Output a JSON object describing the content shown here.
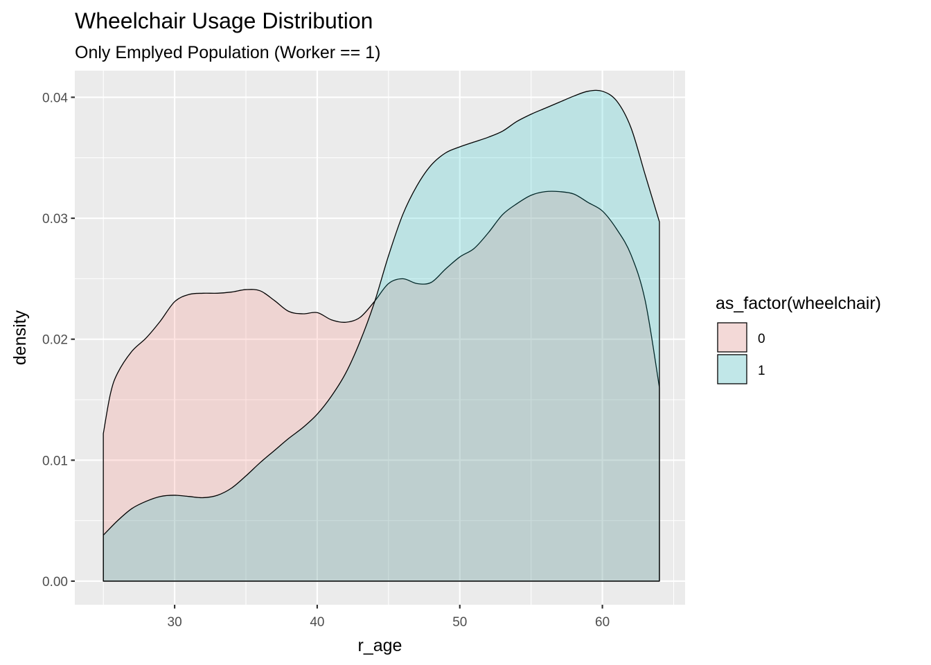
{
  "chart_data": {
    "type": "area",
    "title": "Wheelchair Usage Distribution",
    "subtitle": "Only Emplyed Population (Worker == 1)",
    "xlabel": "r_age",
    "ylabel": "density",
    "xlim": [
      23,
      65.8
    ],
    "ylim": [
      -0.00195,
      0.0422
    ],
    "x_ticks": [
      30,
      40,
      50,
      60
    ],
    "y_ticks": [
      0,
      0.01,
      0.02,
      0.03,
      0.04
    ],
    "x_tick_labels": [
      "30",
      "40",
      "50",
      "60"
    ],
    "y_tick_labels": [
      "0.00",
      "0.01",
      "0.02",
      "0.03",
      "0.04"
    ],
    "grid": true,
    "legend_position": "right",
    "legend_title": "as_factor(wheelchair)",
    "series": [
      {
        "name": "0",
        "fill": "#F8766D",
        "points": [
          [
            25,
            0.0122
          ],
          [
            25.5,
            0.0155
          ],
          [
            26,
            0.0172
          ],
          [
            27,
            0.019
          ],
          [
            28,
            0.0201
          ],
          [
            29,
            0.0215
          ],
          [
            30,
            0.0231
          ],
          [
            31,
            0.0237
          ],
          [
            32,
            0.0238
          ],
          [
            33,
            0.0238
          ],
          [
            34,
            0.0239
          ],
          [
            35,
            0.0241
          ],
          [
            36,
            0.024
          ],
          [
            37,
            0.0232
          ],
          [
            38,
            0.0223
          ],
          [
            39,
            0.0221
          ],
          [
            40,
            0.0222
          ],
          [
            41,
            0.0216
          ],
          [
            42,
            0.0214
          ],
          [
            43,
            0.0218
          ],
          [
            44,
            0.0231
          ],
          [
            45,
            0.0246
          ],
          [
            46,
            0.025
          ],
          [
            47,
            0.0246
          ],
          [
            48,
            0.0247
          ],
          [
            49,
            0.0258
          ],
          [
            50,
            0.0268
          ],
          [
            51,
            0.0275
          ],
          [
            52,
            0.0288
          ],
          [
            53,
            0.0303
          ],
          [
            54,
            0.0312
          ],
          [
            55,
            0.0319
          ],
          [
            56,
            0.0322
          ],
          [
            57,
            0.0322
          ],
          [
            58,
            0.032
          ],
          [
            59,
            0.0313
          ],
          [
            60,
            0.0306
          ],
          [
            61,
            0.0291
          ],
          [
            62,
            0.027
          ],
          [
            63,
            0.0232
          ],
          [
            64,
            0.016
          ]
        ]
      },
      {
        "name": "1",
        "fill": "#00BFC4",
        "points": [
          [
            25,
            0.0038
          ],
          [
            26,
            0.005
          ],
          [
            27,
            0.006
          ],
          [
            28,
            0.0066
          ],
          [
            29,
            0.007
          ],
          [
            30,
            0.0071
          ],
          [
            31,
            0.007
          ],
          [
            32,
            0.0069
          ],
          [
            33,
            0.0071
          ],
          [
            34,
            0.0077
          ],
          [
            35,
            0.0087
          ],
          [
            36,
            0.0098
          ],
          [
            37,
            0.0108
          ],
          [
            38,
            0.0118
          ],
          [
            39,
            0.0127
          ],
          [
            40,
            0.0138
          ],
          [
            41,
            0.0153
          ],
          [
            42,
            0.0172
          ],
          [
            43,
            0.0198
          ],
          [
            44,
            0.023
          ],
          [
            45,
            0.0269
          ],
          [
            46,
            0.0303
          ],
          [
            47,
            0.0327
          ],
          [
            48,
            0.0344
          ],
          [
            49,
            0.0354
          ],
          [
            50,
            0.0359
          ],
          [
            51,
            0.0363
          ],
          [
            52,
            0.0367
          ],
          [
            53,
            0.0372
          ],
          [
            54,
            0.038
          ],
          [
            55,
            0.0386
          ],
          [
            56,
            0.0391
          ],
          [
            57,
            0.0396
          ],
          [
            58,
            0.0401
          ],
          [
            59,
            0.0405
          ],
          [
            60,
            0.0405
          ],
          [
            61,
            0.0397
          ],
          [
            62,
            0.0375
          ],
          [
            63,
            0.0336
          ],
          [
            64,
            0.0297
          ]
        ]
      }
    ]
  }
}
